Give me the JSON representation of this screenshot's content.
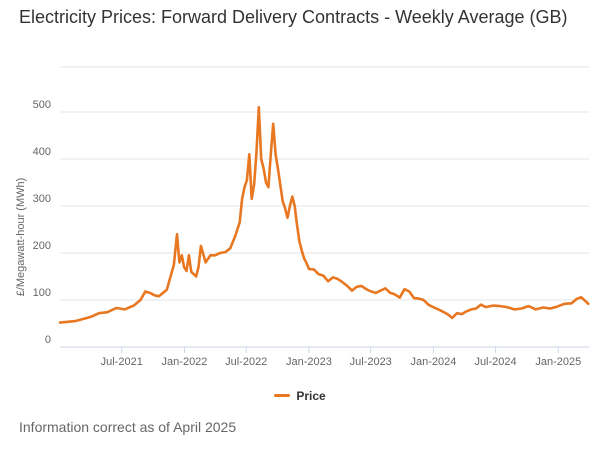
{
  "title": "Electricity Prices: Forward Delivery Contracts - Weekly Average (GB)",
  "footnote": "Information correct as of April 2025",
  "colors": {
    "series": "#E87722",
    "grid": "#e6e6e6",
    "axis": "#ccd6eb",
    "text": "#666666"
  },
  "chart_data": {
    "type": "line",
    "ylabel": "£/Megawatt-hour (MWh)",
    "ylim": [
      0,
      500
    ],
    "yticks": [
      0,
      100,
      200,
      300,
      400,
      500
    ],
    "xlim": [
      "2021-01-01",
      "2025-04-01"
    ],
    "xticks": [
      {
        "date": "2021-07-01",
        "label": "Jul-2021"
      },
      {
        "date": "2022-01-01",
        "label": "Jan-2022"
      },
      {
        "date": "2022-07-01",
        "label": "Jul-2022"
      },
      {
        "date": "2023-01-01",
        "label": "Jan-2023"
      },
      {
        "date": "2023-07-01",
        "label": "Jul-2023"
      },
      {
        "date": "2024-01-01",
        "label": "Jan-2024"
      },
      {
        "date": "2024-07-01",
        "label": "Jul-2024"
      },
      {
        "date": "2025-01-01",
        "label": "Jan-2025"
      }
    ],
    "grid": true,
    "legend_position": "bottom",
    "series": [
      {
        "name": "Price",
        "points": [
          [
            "2021-01-01",
            52
          ],
          [
            "2021-02-15",
            55
          ],
          [
            "2021-04-01",
            64
          ],
          [
            "2021-04-25",
            72
          ],
          [
            "2021-05-20",
            74
          ],
          [
            "2021-06-15",
            83
          ],
          [
            "2021-07-10",
            80
          ],
          [
            "2021-08-05",
            88
          ],
          [
            "2021-08-25",
            100
          ],
          [
            "2021-09-08",
            118
          ],
          [
            "2021-09-22",
            115
          ],
          [
            "2021-10-05",
            110
          ],
          [
            "2021-10-18",
            108
          ],
          [
            "2021-11-10",
            122
          ],
          [
            "2021-12-01",
            175
          ],
          [
            "2021-12-10",
            240
          ],
          [
            "2021-12-17",
            180
          ],
          [
            "2021-12-24",
            195
          ],
          [
            "2021-12-31",
            170
          ],
          [
            "2022-01-07",
            162
          ],
          [
            "2022-01-14",
            195
          ],
          [
            "2022-01-21",
            160
          ],
          [
            "2022-01-28",
            155
          ],
          [
            "2022-02-04",
            150
          ],
          [
            "2022-02-11",
            170
          ],
          [
            "2022-02-18",
            215
          ],
          [
            "2022-03-04",
            180
          ],
          [
            "2022-03-18",
            195
          ],
          [
            "2022-04-01",
            195
          ],
          [
            "2022-04-15",
            200
          ],
          [
            "2022-05-01",
            202
          ],
          [
            "2022-05-15",
            210
          ],
          [
            "2022-05-29",
            235
          ],
          [
            "2022-06-12",
            265
          ],
          [
            "2022-06-19",
            315
          ],
          [
            "2022-06-26",
            340
          ],
          [
            "2022-07-03",
            355
          ],
          [
            "2022-07-10",
            410
          ],
          [
            "2022-07-17",
            315
          ],
          [
            "2022-07-24",
            345
          ],
          [
            "2022-07-31",
            415
          ],
          [
            "2022-08-07",
            510
          ],
          [
            "2022-08-14",
            400
          ],
          [
            "2022-08-21",
            380
          ],
          [
            "2022-08-28",
            350
          ],
          [
            "2022-09-04",
            340
          ],
          [
            "2022-09-11",
            410
          ],
          [
            "2022-09-18",
            475
          ],
          [
            "2022-09-25",
            410
          ],
          [
            "2022-10-02",
            380
          ],
          [
            "2022-10-09",
            345
          ],
          [
            "2022-10-16",
            310
          ],
          [
            "2022-10-23",
            295
          ],
          [
            "2022-10-30",
            275
          ],
          [
            "2022-11-06",
            300
          ],
          [
            "2022-11-13",
            320
          ],
          [
            "2022-11-20",
            300
          ],
          [
            "2022-11-27",
            260
          ],
          [
            "2022-12-04",
            225
          ],
          [
            "2022-12-11",
            205
          ],
          [
            "2022-12-18",
            188
          ],
          [
            "2022-12-25",
            178
          ],
          [
            "2023-01-01",
            166
          ],
          [
            "2023-01-15",
            165
          ],
          [
            "2023-01-29",
            155
          ],
          [
            "2023-02-12",
            152
          ],
          [
            "2023-02-26",
            140
          ],
          [
            "2023-03-12",
            148
          ],
          [
            "2023-03-26",
            145
          ],
          [
            "2023-04-09",
            138
          ],
          [
            "2023-04-23",
            130
          ],
          [
            "2023-05-07",
            120
          ],
          [
            "2023-05-21",
            128
          ],
          [
            "2023-06-04",
            130
          ],
          [
            "2023-06-18",
            123
          ],
          [
            "2023-07-02",
            118
          ],
          [
            "2023-07-16",
            115
          ],
          [
            "2023-07-30",
            120
          ],
          [
            "2023-08-13",
            125
          ],
          [
            "2023-08-27",
            115
          ],
          [
            "2023-09-10",
            112
          ],
          [
            "2023-09-24",
            105
          ],
          [
            "2023-10-08",
            123
          ],
          [
            "2023-10-22",
            118
          ],
          [
            "2023-11-05",
            104
          ],
          [
            "2023-11-19",
            103
          ],
          [
            "2023-12-03",
            100
          ],
          [
            "2023-12-17",
            90
          ],
          [
            "2023-12-31",
            85
          ],
          [
            "2024-01-21",
            78
          ],
          [
            "2024-02-11",
            70
          ],
          [
            "2024-02-25",
            62
          ],
          [
            "2024-03-10",
            72
          ],
          [
            "2024-03-24",
            70
          ],
          [
            "2024-04-07",
            76
          ],
          [
            "2024-04-21",
            80
          ],
          [
            "2024-05-05",
            82
          ],
          [
            "2024-05-19",
            90
          ],
          [
            "2024-06-02",
            85
          ],
          [
            "2024-06-23",
            88
          ],
          [
            "2024-07-14",
            87
          ],
          [
            "2024-08-04",
            85
          ],
          [
            "2024-08-25",
            80
          ],
          [
            "2024-09-15",
            82
          ],
          [
            "2024-10-06",
            87
          ],
          [
            "2024-10-27",
            80
          ],
          [
            "2024-11-17",
            84
          ],
          [
            "2024-12-08",
            82
          ],
          [
            "2024-12-29",
            86
          ],
          [
            "2025-01-19",
            92
          ],
          [
            "2025-02-09",
            93
          ],
          [
            "2025-02-23",
            102
          ],
          [
            "2025-03-09",
            106
          ],
          [
            "2025-03-30",
            92
          ]
        ]
      }
    ]
  }
}
